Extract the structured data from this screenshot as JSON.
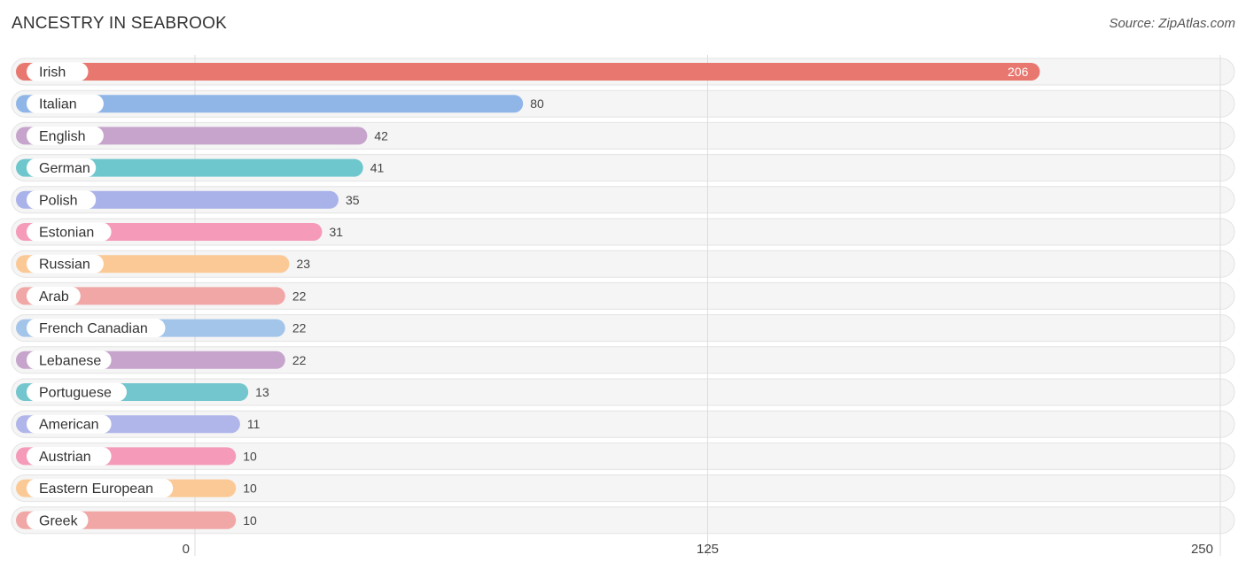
{
  "header": {
    "title": "ANCESTRY IN SEABROOK",
    "source": "Source: ZipAtlas.com"
  },
  "chart_data": {
    "type": "bar",
    "orientation": "horizontal",
    "title": "ANCESTRY IN SEABROOK",
    "categories": [
      "Irish",
      "Italian",
      "English",
      "German",
      "Polish",
      "Estonian",
      "Russian",
      "Arab",
      "French Canadian",
      "Lebanese",
      "Portuguese",
      "American",
      "Austrian",
      "Eastern European",
      "Greek"
    ],
    "values": [
      206,
      80,
      42,
      41,
      35,
      31,
      23,
      22,
      22,
      22,
      13,
      11,
      10,
      10,
      10
    ],
    "colors": [
      "#e8776f",
      "#90b6e8",
      "#c6a4cc",
      "#6ec7cd",
      "#aab2ea",
      "#f59ab9",
      "#fbc995",
      "#f0a7a6",
      "#a4c5ea",
      "#c6a4cc",
      "#73c6cd",
      "#b1b6ea",
      "#f59ab9",
      "#fbc995",
      "#f0a7a6"
    ],
    "xlim": [
      0,
      250
    ],
    "xticks": [
      0,
      125,
      250
    ],
    "grid": true,
    "value_label_inside": [
      true,
      false,
      false,
      false,
      false,
      false,
      false,
      false,
      false,
      false,
      false,
      false,
      false,
      false,
      false
    ]
  }
}
